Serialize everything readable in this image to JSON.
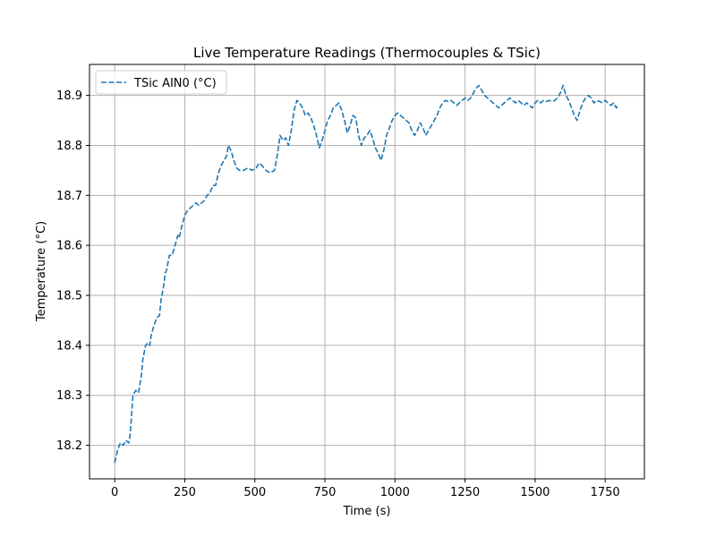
{
  "chart_data": {
    "type": "line",
    "title": "Live Temperature Readings (Thermocouples & TSic)",
    "xlabel": "Time (s)",
    "ylabel": "Temperature (°C)",
    "xlim": [
      -90,
      1890
    ],
    "ylim": [
      18.133,
      18.962
    ],
    "xticks": [
      0,
      250,
      500,
      750,
      1000,
      1250,
      1500,
      1750
    ],
    "yticks": [
      18.2,
      18.3,
      18.4,
      18.5,
      18.6,
      18.7,
      18.8,
      18.9
    ],
    "grid": true,
    "legend_position": "top-left",
    "series": [
      {
        "name": "TSic AIN0 (°C)",
        "color": "#1f77b4",
        "line_style": "dashed",
        "points": [
          [
            0,
            18.165
          ],
          [
            10,
            18.19
          ],
          [
            20,
            18.205
          ],
          [
            30,
            18.2
          ],
          [
            40,
            18.21
          ],
          [
            50,
            18.205
          ],
          [
            55,
            18.22
          ],
          [
            60,
            18.26
          ],
          [
            65,
            18.3
          ],
          [
            75,
            18.31
          ],
          [
            85,
            18.305
          ],
          [
            95,
            18.34
          ],
          [
            100,
            18.37
          ],
          [
            110,
            18.4
          ],
          [
            120,
            18.405
          ],
          [
            125,
            18.4
          ],
          [
            130,
            18.42
          ],
          [
            140,
            18.44
          ],
          [
            150,
            18.455
          ],
          [
            160,
            18.46
          ],
          [
            165,
            18.49
          ],
          [
            175,
            18.52
          ],
          [
            180,
            18.545
          ],
          [
            185,
            18.55
          ],
          [
            195,
            18.58
          ],
          [
            205,
            18.58
          ],
          [
            210,
            18.59
          ],
          [
            215,
            18.6
          ],
          [
            225,
            18.62
          ],
          [
            230,
            18.615
          ],
          [
            240,
            18.64
          ],
          [
            250,
            18.66
          ],
          [
            260,
            18.67
          ],
          [
            270,
            18.675
          ],
          [
            280,
            18.68
          ],
          [
            290,
            18.685
          ],
          [
            300,
            18.68
          ],
          [
            310,
            18.685
          ],
          [
            320,
            18.69
          ],
          [
            330,
            18.7
          ],
          [
            340,
            18.705
          ],
          [
            350,
            18.72
          ],
          [
            360,
            18.72
          ],
          [
            370,
            18.745
          ],
          [
            380,
            18.76
          ],
          [
            390,
            18.77
          ],
          [
            400,
            18.78
          ],
          [
            405,
            18.8
          ],
          [
            415,
            18.79
          ],
          [
            425,
            18.77
          ],
          [
            435,
            18.755
          ],
          [
            445,
            18.75
          ],
          [
            460,
            18.75
          ],
          [
            475,
            18.755
          ],
          [
            490,
            18.75
          ],
          [
            505,
            18.755
          ],
          [
            515,
            18.765
          ],
          [
            525,
            18.76
          ],
          [
            540,
            18.75
          ],
          [
            555,
            18.745
          ],
          [
            570,
            18.75
          ],
          [
            580,
            18.78
          ],
          [
            590,
            18.82
          ],
          [
            600,
            18.81
          ],
          [
            610,
            18.815
          ],
          [
            620,
            18.8
          ],
          [
            630,
            18.83
          ],
          [
            640,
            18.87
          ],
          [
            650,
            18.89
          ],
          [
            660,
            18.885
          ],
          [
            670,
            18.875
          ],
          [
            680,
            18.86
          ],
          [
            690,
            18.865
          ],
          [
            700,
            18.855
          ],
          [
            710,
            18.84
          ],
          [
            720,
            18.82
          ],
          [
            730,
            18.795
          ],
          [
            740,
            18.81
          ],
          [
            750,
            18.83
          ],
          [
            760,
            18.85
          ],
          [
            770,
            18.86
          ],
          [
            780,
            18.875
          ],
          [
            790,
            18.88
          ],
          [
            800,
            18.885
          ],
          [
            810,
            18.87
          ],
          [
            820,
            18.85
          ],
          [
            830,
            18.825
          ],
          [
            840,
            18.84
          ],
          [
            850,
            18.86
          ],
          [
            860,
            18.855
          ],
          [
            870,
            18.82
          ],
          [
            880,
            18.8
          ],
          [
            890,
            18.815
          ],
          [
            900,
            18.82
          ],
          [
            910,
            18.83
          ],
          [
            920,
            18.815
          ],
          [
            930,
            18.795
          ],
          [
            940,
            18.785
          ],
          [
            950,
            18.77
          ],
          [
            960,
            18.79
          ],
          [
            970,
            18.82
          ],
          [
            980,
            18.835
          ],
          [
            990,
            18.85
          ],
          [
            1000,
            18.86
          ],
          [
            1010,
            18.865
          ],
          [
            1020,
            18.86
          ],
          [
            1030,
            18.855
          ],
          [
            1040,
            18.85
          ],
          [
            1050,
            18.845
          ],
          [
            1060,
            18.83
          ],
          [
            1070,
            18.82
          ],
          [
            1080,
            18.83
          ],
          [
            1090,
            18.845
          ],
          [
            1100,
            18.835
          ],
          [
            1110,
            18.82
          ],
          [
            1120,
            18.83
          ],
          [
            1130,
            18.84
          ],
          [
            1140,
            18.85
          ],
          [
            1150,
            18.86
          ],
          [
            1160,
            18.875
          ],
          [
            1170,
            18.885
          ],
          [
            1180,
            18.89
          ],
          [
            1190,
            18.888
          ],
          [
            1200,
            18.89
          ],
          [
            1210,
            18.885
          ],
          [
            1220,
            18.88
          ],
          [
            1230,
            18.885
          ],
          [
            1240,
            18.89
          ],
          [
            1250,
            18.895
          ],
          [
            1260,
            18.89
          ],
          [
            1270,
            18.895
          ],
          [
            1280,
            18.905
          ],
          [
            1290,
            18.915
          ],
          [
            1300,
            18.92
          ],
          [
            1310,
            18.91
          ],
          [
            1320,
            18.9
          ],
          [
            1330,
            18.895
          ],
          [
            1340,
            18.89
          ],
          [
            1350,
            18.885
          ],
          [
            1360,
            18.88
          ],
          [
            1370,
            18.875
          ],
          [
            1380,
            18.88
          ],
          [
            1390,
            18.885
          ],
          [
            1400,
            18.89
          ],
          [
            1410,
            18.895
          ],
          [
            1420,
            18.89
          ],
          [
            1430,
            18.885
          ],
          [
            1440,
            18.89
          ],
          [
            1450,
            18.885
          ],
          [
            1460,
            18.88
          ],
          [
            1470,
            18.885
          ],
          [
            1480,
            18.88
          ],
          [
            1490,
            18.875
          ],
          [
            1500,
            18.885
          ],
          [
            1510,
            18.89
          ],
          [
            1520,
            18.885
          ],
          [
            1530,
            18.89
          ],
          [
            1540,
            18.888
          ],
          [
            1550,
            18.89
          ],
          [
            1560,
            18.888
          ],
          [
            1570,
            18.89
          ],
          [
            1580,
            18.895
          ],
          [
            1590,
            18.905
          ],
          [
            1600,
            18.92
          ],
          [
            1610,
            18.9
          ],
          [
            1620,
            18.89
          ],
          [
            1630,
            18.875
          ],
          [
            1640,
            18.86
          ],
          [
            1650,
            18.85
          ],
          [
            1660,
            18.87
          ],
          [
            1670,
            18.885
          ],
          [
            1680,
            18.895
          ],
          [
            1690,
            18.9
          ],
          [
            1700,
            18.895
          ],
          [
            1710,
            18.885
          ],
          [
            1720,
            18.89
          ],
          [
            1730,
            18.888
          ],
          [
            1740,
            18.885
          ],
          [
            1750,
            18.89
          ],
          [
            1760,
            18.885
          ],
          [
            1770,
            18.88
          ],
          [
            1780,
            18.885
          ],
          [
            1790,
            18.875
          ],
          [
            1795,
            18.88
          ]
        ]
      }
    ]
  }
}
